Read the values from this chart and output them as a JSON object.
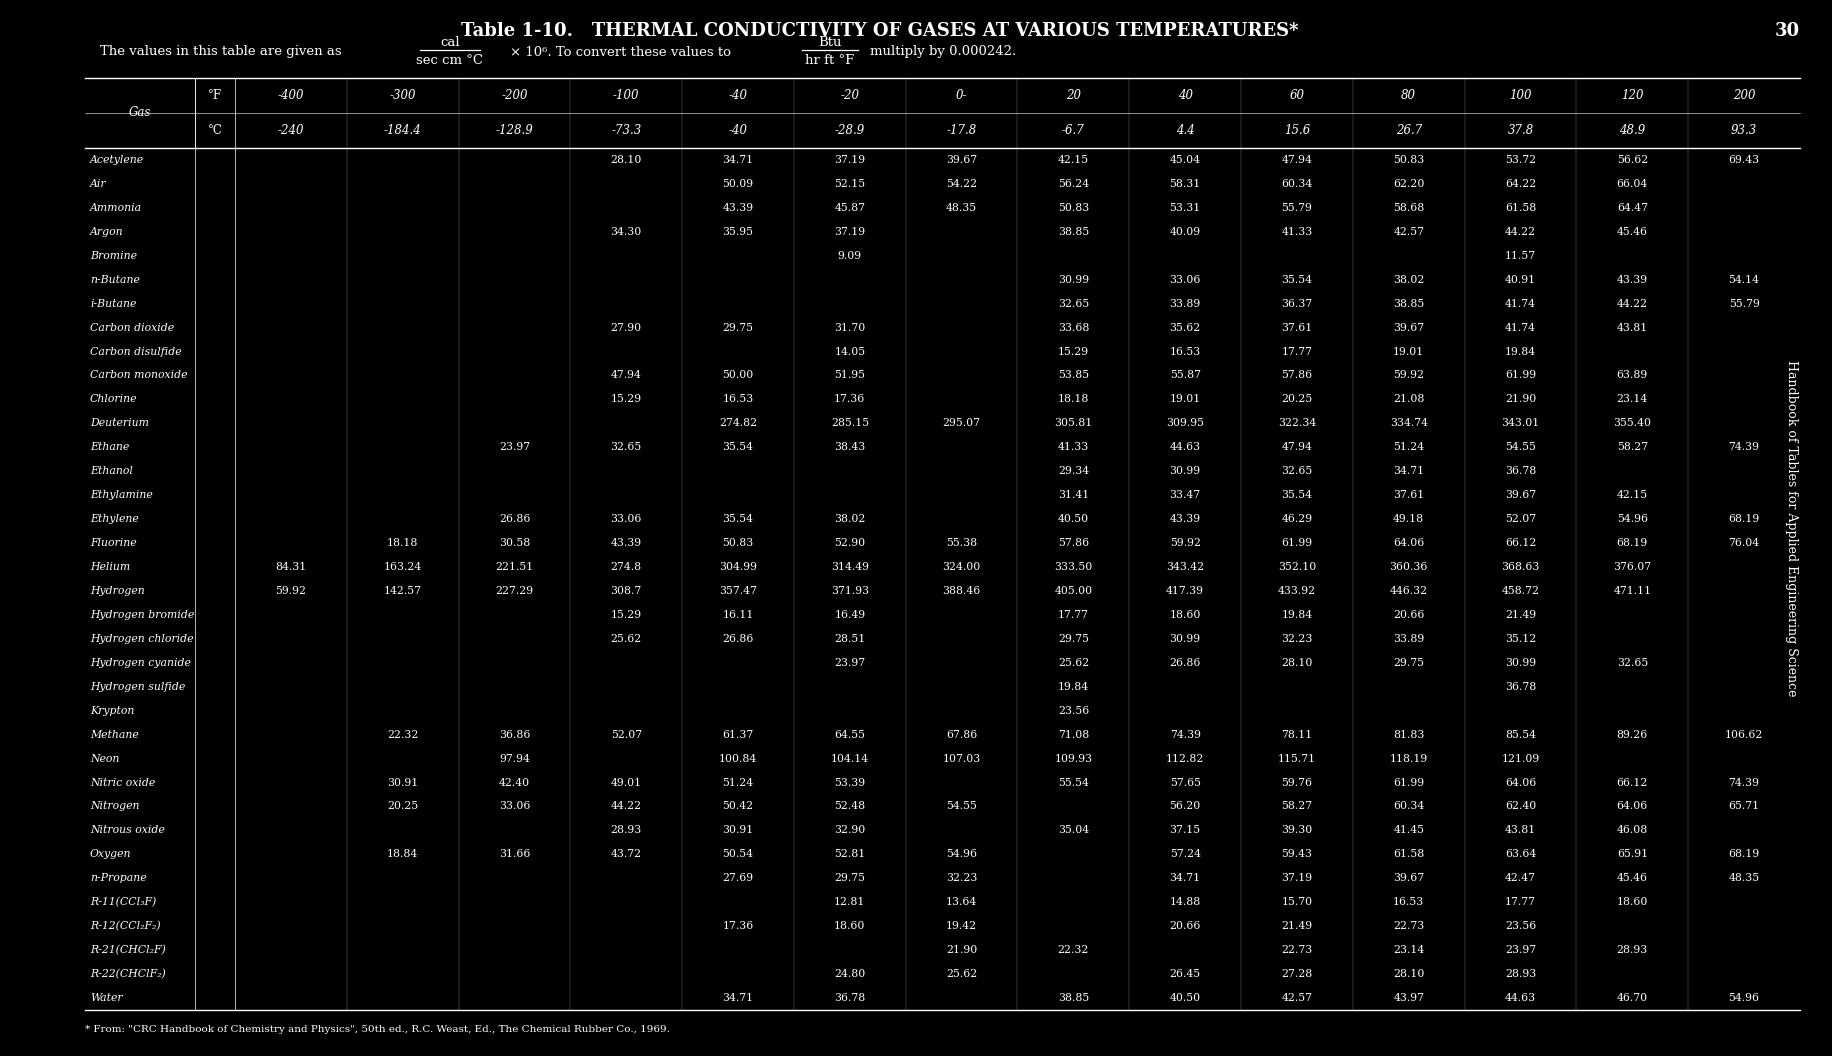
{
  "title_bold": "Table 1-10.",
  "title_main": "   THERMAL CONDUCTIVITY OF GASES AT VARIOUS TEMPERATURES*",
  "subtitle_pre": "The values in this table are given as",
  "subtitle_units_num": "cal",
  "subtitle_units_den": "sec cm °C",
  "subtitle_mid": "× 10⁶. To convert these values to",
  "subtitle_units2_num": "Btu",
  "subtitle_units2_den": "hr ft °F",
  "subtitle_end": "multiply by 0.000242.",
  "col_headers_F": [
    "°F",
    "-400",
    "-300",
    "-200",
    "-100",
    "-40",
    "-20 ",
    "0-",
    "20",
    "40",
    "60",
    "80",
    "100 ",
    "120",
    "200"
  ],
  "col_headers_C": [
    "°C",
    "-240",
    "-184.4",
    "-128.9",
    "-73.3",
    "-40",
    "-28.9",
    "-17.8",
    "-6.7",
    "4.4",
    "15.6",
    "26.7",
    "37.8",
    "48.9",
    "93.3"
  ],
  "col0_label": "Gas",
  "rows": [
    [
      "Acetylene",
      "",
      "",
      "",
      "28.10",
      "34.71",
      "37.19",
      "39.67",
      "42.15",
      "45.04",
      "47.94",
      "50.83",
      "53.72",
      "56.62",
      "69.43"
    ],
    [
      "Air",
      "",
      "",
      "",
      "",
      "50.09",
      "52.15",
      "54.22",
      "56.24",
      "58.31",
      "60.34",
      "62.20",
      "64.22",
      "66.04",
      ""
    ],
    [
      "Ammonia",
      "",
      "",
      "",
      "",
      "43.39",
      "45.87",
      "48.35",
      "50.83",
      "53.31",
      "55.79",
      "58.68",
      "61.58",
      "64.47",
      ""
    ],
    [
      "Argon",
      "",
      "",
      "",
      "34.30",
      "35.95",
      "37.19",
      "",
      "38.85",
      "40.09",
      "41.33",
      "42.57",
      "44.22",
      "45.46",
      ""
    ],
    [
      "Bromine",
      "",
      "",
      "",
      "",
      "",
      "9.09",
      "",
      "",
      "",
      "",
      "",
      "11.57",
      "",
      ""
    ],
    [
      "n-Butane",
      "",
      "",
      "",
      "",
      "",
      "",
      "",
      "30.99",
      "33.06",
      "35.54",
      "38.02",
      "40.91",
      "43.39",
      "54.14"
    ],
    [
      "i-Butane",
      "",
      "",
      "",
      "",
      "",
      "",
      "",
      "32.65",
      "33.89",
      "36.37",
      "38.85",
      "41.74",
      "44.22",
      "55.79"
    ],
    [
      "Carbon dioxide",
      "",
      "",
      "",
      "27.90",
      "29.75",
      "31.70",
      "",
      "33.68",
      "35.62",
      "37.61",
      "39.67",
      "41.74",
      "43.81",
      ""
    ],
    [
      "Carbon disulfide",
      "",
      "",
      "",
      "",
      "",
      "14.05",
      "",
      "15.29",
      "16.53",
      "17.77",
      "19.01",
      "19.84",
      "",
      ""
    ],
    [
      "Carbon monoxide",
      "",
      "",
      "",
      "47.94",
      "50.00",
      "51.95",
      "",
      "53.85",
      "55.87",
      "57.86",
      "59.92",
      "61.99",
      "63.89",
      ""
    ],
    [
      "Chlorine",
      "",
      "",
      "",
      "15.29",
      "16.53",
      "17.36",
      "",
      "18.18",
      "19.01",
      "20.25",
      "21.08",
      "21.90",
      "23.14",
      ""
    ],
    [
      "Deuterium",
      "",
      "",
      "",
      "",
      "274.82",
      "285.15",
      "295.07",
      "305.81",
      "309.95",
      "322.34",
      "334.74",
      "343.01",
      "355.40",
      ""
    ],
    [
      "Ethane",
      "",
      "",
      "23.97",
      "32.65",
      "35.54",
      "38.43",
      "",
      "41.33",
      "44.63",
      "47.94",
      "51.24",
      "54.55",
      "58.27",
      "74.39"
    ],
    [
      "Ethanol",
      "",
      "",
      "",
      "",
      "",
      "",
      "",
      "29.34",
      "30.99",
      "32.65",
      "34.71",
      "36.78",
      "",
      ""
    ],
    [
      "Ethylamine",
      "",
      "",
      "",
      "",
      "",
      "",
      "",
      "31.41",
      "33.47",
      "35.54",
      "37.61",
      "39.67",
      "42.15",
      ""
    ],
    [
      "Ethylene",
      "",
      "",
      "26.86",
      "33.06",
      "35.54",
      "38.02",
      "",
      "40.50",
      "43.39",
      "46.29",
      "49.18",
      "52.07",
      "54.96",
      "68.19"
    ],
    [
      "Fluorine",
      "",
      "18.18",
      "30.58",
      "43.39",
      "50.83",
      "52.90",
      "55.38",
      "57.86",
      "59.92",
      "61.99",
      "64.06",
      "66.12",
      "68.19",
      "76.04"
    ],
    [
      "Helium",
      "84.31",
      "163.24",
      "221.51",
      "274.8",
      "304.99",
      "314.49",
      "324.00",
      "333.50",
      "343.42",
      "352.10",
      "360.36",
      "368.63",
      "376.07",
      ""
    ],
    [
      "Hydrogen",
      "59.92",
      "142.57",
      "227.29",
      "308.7",
      "357.47",
      "371.93",
      "388.46",
      "405.00",
      "417.39",
      "433.92",
      "446.32",
      "458.72",
      "471.11",
      ""
    ],
    [
      "Hydrogen bromide",
      "",
      "",
      "",
      "15.29",
      "16.11",
      "16.49",
      "",
      "17.77",
      "18.60",
      "19.84",
      "20.66",
      "21.49",
      "",
      ""
    ],
    [
      "Hydrogen chloride",
      "",
      "",
      "",
      "25.62",
      "26.86",
      "28.51",
      "",
      "29.75",
      "30.99",
      "32.23",
      "33.89",
      "35.12",
      "",
      ""
    ],
    [
      "Hydrogen cyanide",
      "",
      "",
      "",
      "",
      "",
      "23.97",
      "",
      "25.62",
      "26.86",
      "28.10",
      "29.75",
      "30.99",
      "32.65",
      ""
    ],
    [
      "Hydrogen sulfide",
      "",
      "",
      "",
      "",
      "",
      "",
      "",
      "19.84",
      "",
      "",
      "",
      "36.78",
      "",
      ""
    ],
    [
      "Krypton",
      "",
      "",
      "",
      "",
      "",
      "",
      "",
      "23.56",
      "",
      "",
      "",
      "",
      "",
      ""
    ],
    [
      "Methane",
      "",
      "22.32",
      "36.86",
      "52.07",
      "61.37",
      "64.55",
      "67.86",
      "71.08",
      "74.39",
      "78.11",
      "81.83",
      "85.54",
      "89.26",
      "106.62"
    ],
    [
      "Neon",
      "",
      "",
      "97.94",
      "",
      "100.84",
      "104.14",
      "107.03",
      "109.93",
      "112.82",
      "115.71",
      "118.19",
      "121.09",
      "",
      ""
    ],
    [
      "Nitric oxide",
      "",
      "30.91",
      "42.40",
      "49.01",
      "51.24",
      "53.39",
      "",
      "55.54",
      "57.65",
      "59.76",
      "61.99",
      "64.06",
      "66.12",
      "74.39"
    ],
    [
      "Nitrogen",
      "",
      "20.25",
      "33.06",
      "44.22",
      "50.42",
      "52.48",
      "54.55",
      "",
      "56.20",
      "58.27",
      "60.34",
      "62.40",
      "64.06",
      "65.71"
    ],
    [
      "Nitrous oxide",
      "",
      "",
      "",
      "28.93",
      "30.91",
      "32.90",
      "",
      "35.04",
      "37.15",
      "39.30",
      "41.45",
      "43.81",
      "46.08",
      ""
    ],
    [
      "Oxygen",
      "",
      "18.84",
      "31.66",
      "43.72",
      "50.54",
      "52.81",
      "54.96",
      "",
      "57.24",
      "59.43",
      "61.58",
      "63.64",
      "65.91",
      "68.19"
    ],
    [
      "n-Propane",
      "",
      "",
      "",
      "",
      "27.69",
      "29.75",
      "32.23",
      "",
      "34.71",
      "37.19",
      "39.67",
      "42.47",
      "45.46",
      "48.35"
    ],
    [
      "R-11(CCl₃F)",
      "",
      "",
      "",
      "",
      "",
      "12.81",
      "13.64",
      "",
      "14.88",
      "15.70",
      "16.53",
      "17.77",
      "18.60",
      ""
    ],
    [
      "R-12(CCl₂F₂)",
      "",
      "",
      "",
      "",
      "17.36",
      "18.60",
      "19.42",
      "",
      "20.66",
      "21.49",
      "22.73",
      "23.56",
      "",
      ""
    ],
    [
      "R-21(CHCl₂F)",
      "",
      "",
      "",
      "",
      "",
      "",
      "21.90",
      "22.32",
      "",
      "22.73",
      "23.14",
      "23.97",
      "28.93",
      ""
    ],
    [
      "R-22(CHClF₂)",
      "",
      "",
      "",
      "",
      "",
      "24.80",
      "25.62",
      "",
      "26.45",
      "27.28",
      "28.10",
      "28.93",
      "",
      ""
    ],
    [
      "Water",
      "",
      "",
      "",
      "",
      "34.71",
      "36.78",
      "",
      "38.85",
      "40.50",
      "42.57",
      "43.97",
      "44.63",
      "46.70",
      "54.96"
    ]
  ],
  "footnote": "* From: \"CRC Handbook of Chemistry and Physics\", 50th ed., R.C. Weast, Ed., The Chemical Rubber Co., 1969.",
  "sidebar": "Handbook of Tables for Applied Engineering Science",
  "page_num": "30",
  "bg_color": "#000000",
  "text_color": "#ffffff"
}
